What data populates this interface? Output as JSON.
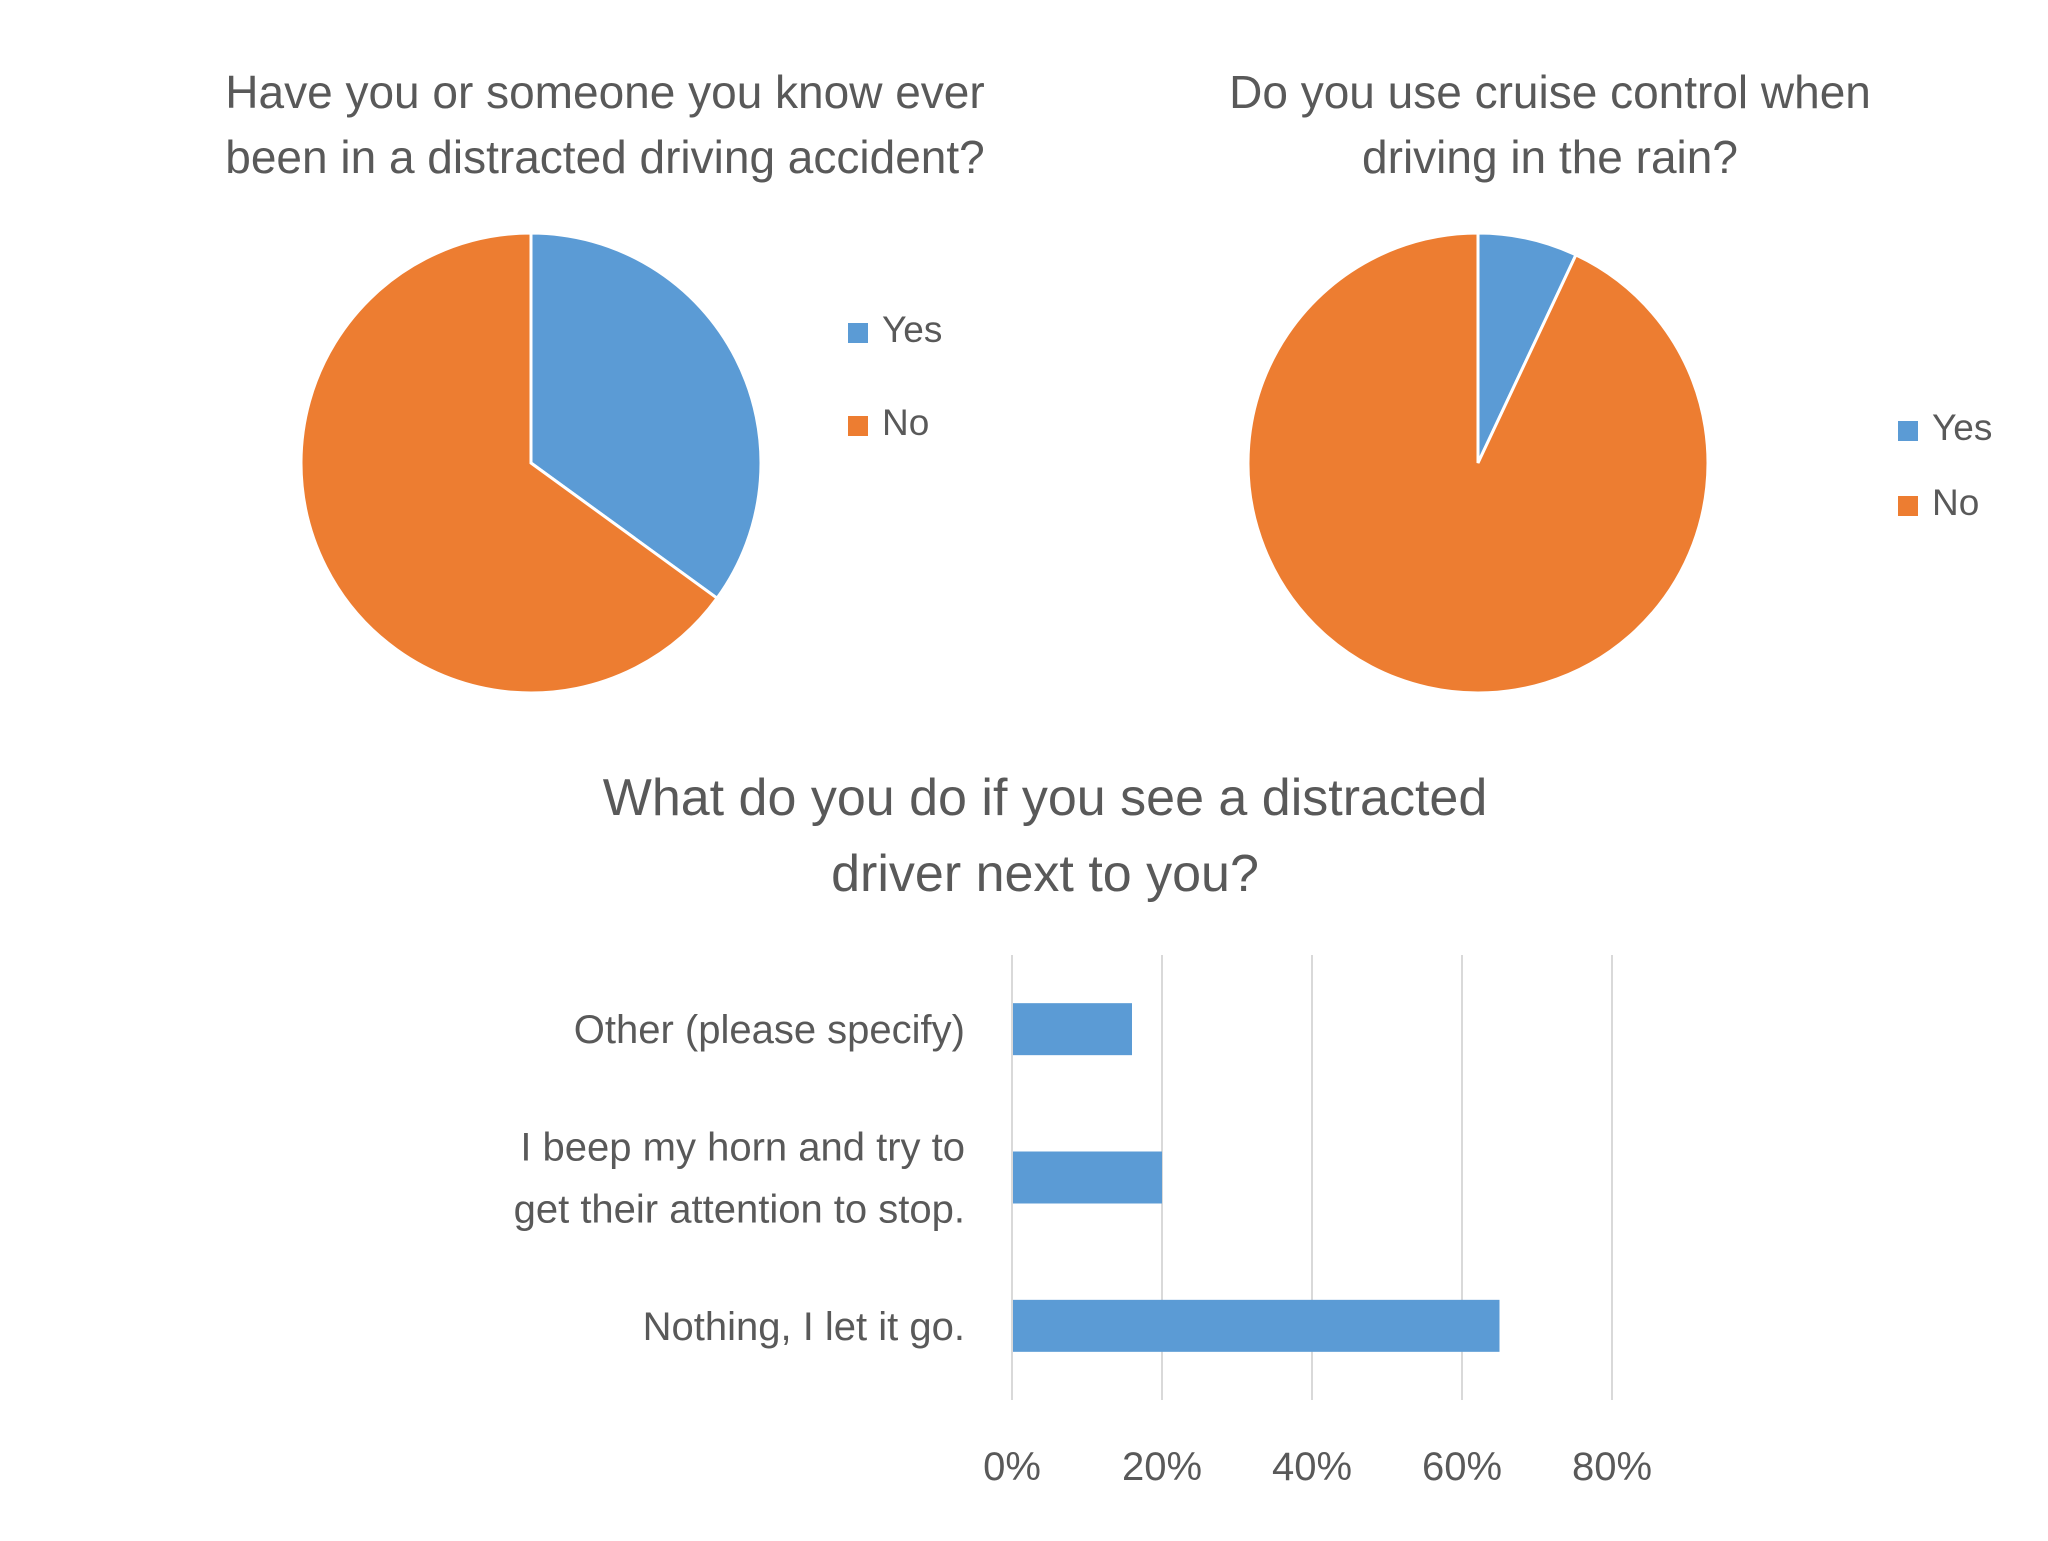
{
  "chart_data": [
    {
      "type": "pie",
      "title_lines": [
        "Have you or someone you know ever",
        "been in a distracted driving accident?"
      ],
      "categories": [
        "Yes",
        "No"
      ],
      "values": [
        35,
        65
      ],
      "colors": [
        "#5B9BD5",
        "#ED7D31"
      ],
      "legend_position": "right"
    },
    {
      "type": "pie",
      "title_lines": [
        "Do you use cruise control when",
        "driving in the rain?"
      ],
      "categories": [
        "Yes",
        "No"
      ],
      "values": [
        7,
        93
      ],
      "colors": [
        "#5B9BD5",
        "#ED7D31"
      ],
      "legend_position": "right"
    },
    {
      "type": "bar",
      "orientation": "horizontal",
      "title_lines": [
        "What do you do if you see a distracted",
        "driver next to you?"
      ],
      "categories": [
        [
          "Other (please specify)"
        ],
        [
          "I beep my horn and try to",
          "get their attention to stop."
        ],
        [
          "Nothing, I let it go."
        ]
      ],
      "values": [
        16,
        20,
        65
      ],
      "xlim": [
        0,
        80
      ],
      "xticks": [
        "0%",
        "20%",
        "40%",
        "60%",
        "80%"
      ],
      "grid": true,
      "color": "#5B9BD5"
    }
  ]
}
